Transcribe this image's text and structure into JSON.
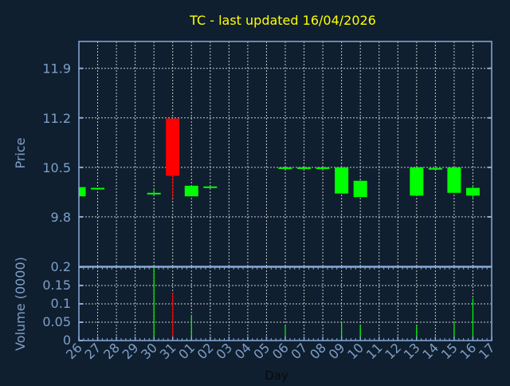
{
  "chart_data": [
    {
      "type": "candlestick",
      "title": "TC - last updated 16/04/2026",
      "ylabel": "Price",
      "xlabel": "Day",
      "ylim": [
        9.1,
        12.28
      ],
      "yticks": [
        "9.8",
        "10.5",
        "11.2",
        "11.9"
      ],
      "grid": true,
      "x_tick_labels": [
        "26",
        "27",
        "28",
        "29",
        "30",
        "31",
        "01",
        "02",
        "03",
        "04",
        "05",
        "06",
        "07",
        "08",
        "09",
        "10",
        "11",
        "12",
        "13",
        "14",
        "15",
        "16",
        "17"
      ],
      "candles": [
        {
          "day": "26",
          "open": 10.09,
          "high": 10.22,
          "low": 10.09,
          "close": 10.22
        },
        {
          "day": "27",
          "open": 10.21,
          "high": 10.21,
          "low": 10.2,
          "close": 10.21
        },
        {
          "day": "30",
          "open": 10.14,
          "high": 10.19,
          "low": 10.14,
          "close": 10.14
        },
        {
          "day": "31",
          "open": 11.19,
          "high": 11.19,
          "low": 10.06,
          "close": 10.38
        },
        {
          "day": "01",
          "open": 10.09,
          "high": 10.24,
          "low": 10.09,
          "close": 10.24
        },
        {
          "day": "02",
          "open": 10.23,
          "high": 10.23,
          "low": 10.22,
          "close": 10.23
        },
        {
          "day": "06",
          "open": 10.49,
          "high": 10.5,
          "low": 10.49,
          "close": 10.5
        },
        {
          "day": "07",
          "open": 10.49,
          "high": 10.5,
          "low": 10.49,
          "close": 10.5
        },
        {
          "day": "08",
          "open": 10.49,
          "high": 10.5,
          "low": 10.49,
          "close": 10.5
        },
        {
          "day": "09",
          "open": 10.13,
          "high": 10.5,
          "low": 10.13,
          "close": 10.5
        },
        {
          "day": "10",
          "open": 10.08,
          "high": 10.31,
          "low": 10.08,
          "close": 10.31
        },
        {
          "day": "13",
          "open": 10.1,
          "high": 10.5,
          "low": 10.1,
          "close": 10.5
        },
        {
          "day": "14",
          "open": 10.48,
          "high": 10.49,
          "low": 10.48,
          "close": 10.49
        },
        {
          "day": "15",
          "open": 10.14,
          "high": 10.5,
          "low": 10.14,
          "close": 10.5
        },
        {
          "day": "16",
          "open": 10.1,
          "high": 10.24,
          "low": 10.06,
          "close": 10.21
        }
      ]
    },
    {
      "type": "bar",
      "ylabel": "Volume (0000)",
      "xlabel": "Day",
      "ylim": [
        0,
        0.2
      ],
      "yticks": [
        "0",
        "0.05",
        "0.1",
        "0.15",
        "0.2"
      ],
      "grid": true,
      "bars": [
        {
          "day": "30",
          "value": 0.2,
          "color": "#00ff00"
        },
        {
          "day": "31",
          "value": 0.13,
          "color": "#ff0000"
        },
        {
          "day": "01",
          "value": 0.07,
          "color": "#00ff00"
        },
        {
          "day": "06",
          "value": 0.04,
          "color": "#00ff00"
        },
        {
          "day": "09",
          "value": 0.05,
          "color": "#00ff00"
        },
        {
          "day": "10",
          "value": 0.04,
          "color": "#00ff00"
        },
        {
          "day": "13",
          "value": 0.04,
          "color": "#00ff00"
        },
        {
          "day": "15",
          "value": 0.05,
          "color": "#00ff00"
        },
        {
          "day": "16",
          "value": 0.115,
          "color": "#00ff00"
        }
      ]
    }
  ],
  "colors": {
    "background": "#0f1f2f",
    "title": "#ffff00",
    "axis": "#8aaad8",
    "text": "#7f9fc8",
    "up": "#00ff00",
    "down": "#ff0000",
    "grid": "#c8c8c8"
  }
}
